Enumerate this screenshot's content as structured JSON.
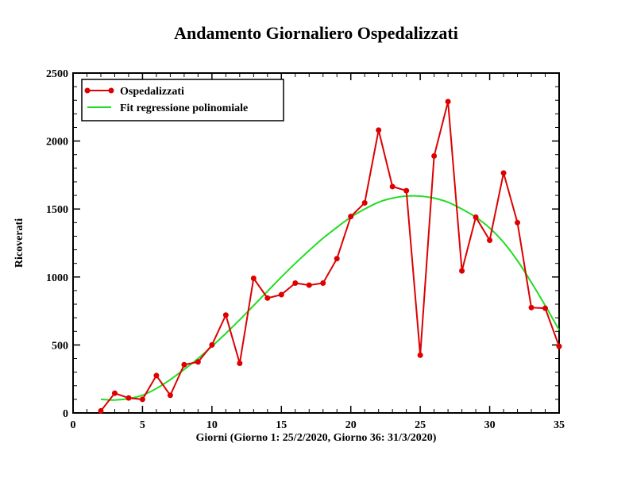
{
  "chart_data": {
    "type": "line",
    "title": "Andamento Giornaliero Ospedalizzati",
    "xlabel": "Giorni   (Giorno 1: 25/2/2020, Giorno 36: 31/3/2020)",
    "ylabel": "Ricoverati",
    "xlim": [
      0,
      35
    ],
    "ylim": [
      0,
      2500
    ],
    "x_ticks": [
      0,
      5,
      10,
      15,
      20,
      25,
      30,
      35
    ],
    "y_ticks": [
      0,
      500,
      1000,
      1500,
      2000,
      2500
    ],
    "legend_position": "top-left",
    "series": [
      {
        "name": "Ospedalizzati",
        "color": "#dd0000",
        "marker": "circle",
        "x": [
          2,
          3,
          4,
          5,
          6,
          7,
          8,
          9,
          10,
          11,
          12,
          13,
          14,
          15,
          16,
          17,
          18,
          19,
          20,
          21,
          22,
          23,
          24,
          25,
          26,
          27,
          28,
          29,
          30,
          31,
          32,
          33,
          34,
          35
        ],
        "y": [
          15,
          145,
          110,
          100,
          275,
          130,
          355,
          375,
          500,
          720,
          365,
          990,
          845,
          870,
          955,
          940,
          955,
          1135,
          1445,
          1545,
          2080,
          1665,
          1635,
          425,
          1890,
          2290,
          1045,
          1440,
          1270,
          1765,
          1400,
          775,
          770,
          490
        ]
      },
      {
        "name": "Fit regressione polinomiale",
        "color": "#22dd22",
        "marker": "none",
        "x": [
          2,
          3,
          4,
          5,
          6,
          7,
          8,
          9,
          10,
          11,
          12,
          13,
          14,
          15,
          16,
          17,
          18,
          19,
          20,
          21,
          22,
          23,
          24,
          25,
          26,
          27,
          28,
          29,
          30,
          31,
          32,
          33,
          34,
          35
        ],
        "y": [
          100,
          95,
          105,
          130,
          180,
          245,
          320,
          400,
          490,
          585,
          685,
          790,
          895,
          1000,
          1100,
          1195,
          1285,
          1365,
          1440,
          1500,
          1550,
          1580,
          1595,
          1595,
          1580,
          1550,
          1500,
          1440,
          1360,
          1255,
          1120,
          960,
          790,
          610
        ]
      }
    ]
  }
}
